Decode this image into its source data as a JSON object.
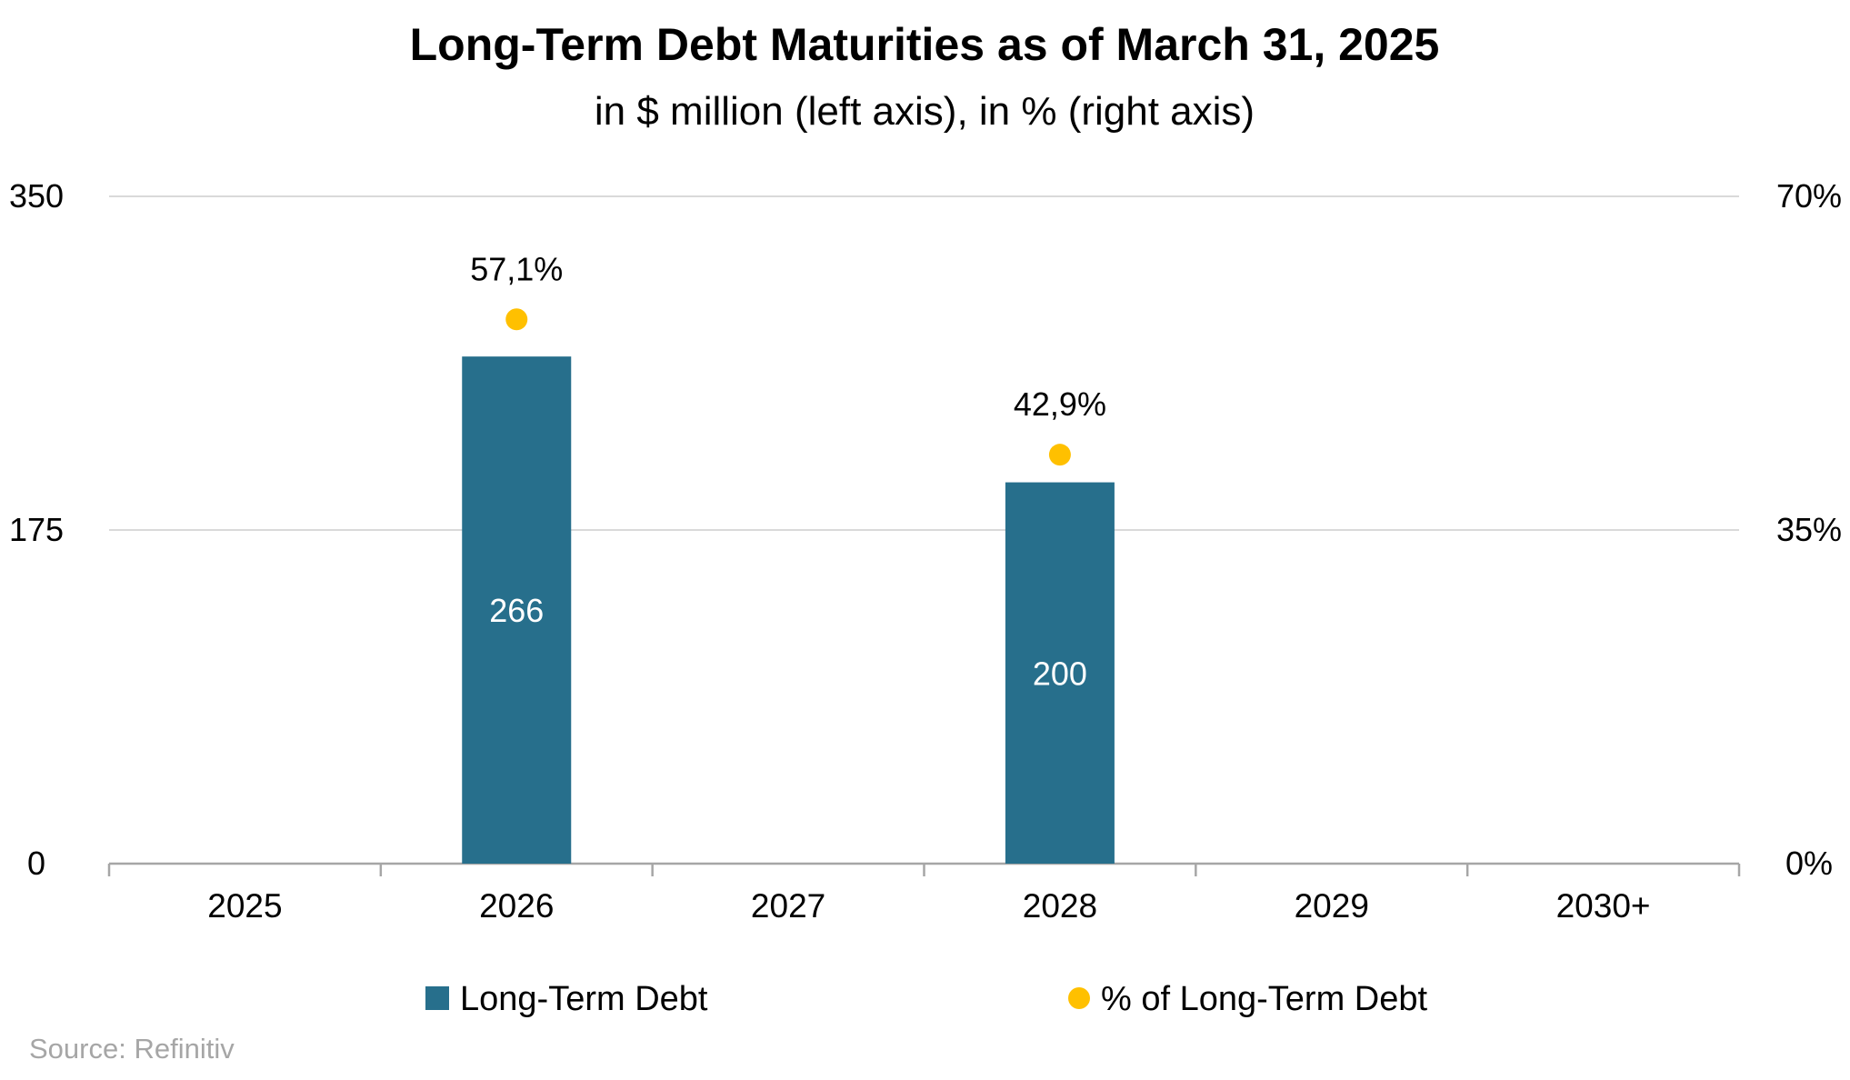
{
  "colors": {
    "bar": "#276F8C",
    "dot": "#FFC000",
    "grid": "#D9D9D9",
    "axis": "#A6A6A6",
    "text": "#000000",
    "source": "#A6A6A6",
    "bar_label": "#FFFFFF"
  },
  "chart_data": {
    "type": "bar",
    "title": "Long-Term Debt Maturities as of March 31, 2025",
    "subtitle": "in $ million (left axis), in % (right axis)",
    "categories": [
      "2025",
      "2026",
      "2027",
      "2028",
      "2029",
      "2030+"
    ],
    "series": [
      {
        "name": "Long-Term Debt",
        "type": "bar",
        "axis": "left",
        "values": [
          0,
          266,
          0,
          200,
          0,
          0
        ],
        "labels": [
          "",
          "266",
          "",
          "200",
          "",
          ""
        ]
      },
      {
        "name": "% of Long-Term Debt",
        "type": "scatter",
        "axis": "right",
        "values": [
          null,
          57.1,
          null,
          42.9,
          null,
          null
        ],
        "labels": [
          "",
          "57,1%",
          "",
          "42,9%",
          "",
          ""
        ]
      }
    ],
    "left_axis": {
      "ylim": [
        0,
        350
      ],
      "ticks": [
        0,
        175,
        350
      ],
      "tick_labels": [
        "0",
        "175",
        "350"
      ]
    },
    "right_axis": {
      "ylim": [
        0,
        70
      ],
      "ticks": [
        0,
        35,
        70
      ],
      "tick_labels": [
        "0%",
        "35%",
        "70%"
      ]
    },
    "grid": true,
    "legend_position": "bottom",
    "source": "Source: Refinitiv"
  }
}
